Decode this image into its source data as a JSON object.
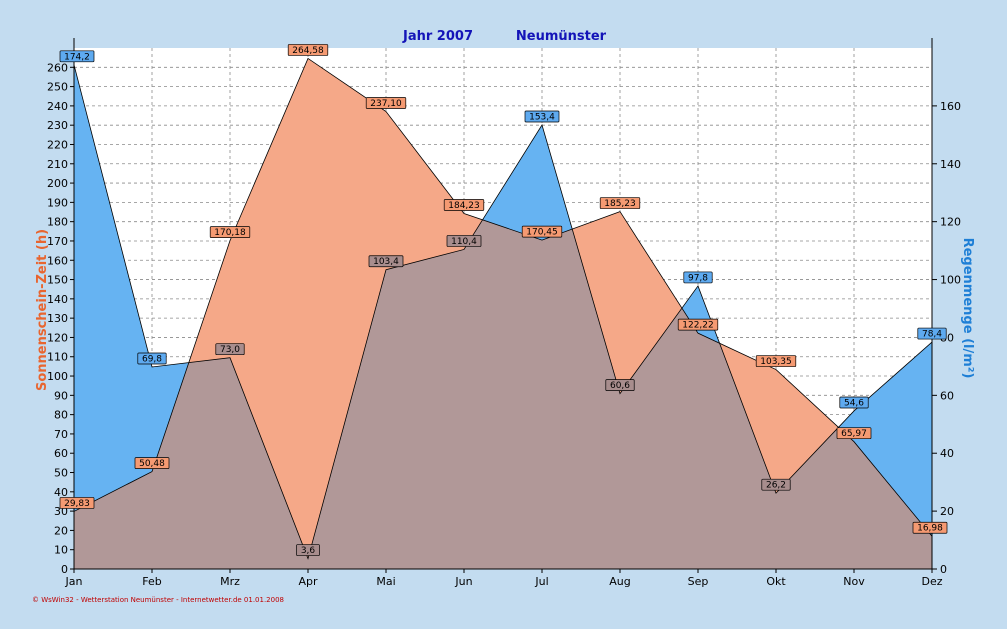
{
  "chart_data": {
    "type": "area",
    "title_year": "Jahr  2007",
    "title_station": "Neumünster",
    "categories": [
      "Jan",
      "Feb",
      "Mrz",
      "Apr",
      "Mai",
      "Jun",
      "Jul",
      "Aug",
      "Sep",
      "Okt",
      "Nov",
      "Dez"
    ],
    "ylabel_left": "Sonnenschein-Zeit  (h)",
    "ylabel_right": "Regenmenge  (l/m²)",
    "ylim_left": [
      0,
      270
    ],
    "yticks_left": [
      0,
      10,
      20,
      30,
      40,
      50,
      60,
      70,
      80,
      90,
      100,
      110,
      120,
      130,
      140,
      150,
      160,
      170,
      180,
      190,
      200,
      210,
      220,
      230,
      240,
      250,
      260
    ],
    "ylim_right": [
      0,
      180
    ],
    "yticks_right": [
      0,
      20,
      40,
      60,
      80,
      100,
      120,
      140,
      160
    ],
    "series": [
      {
        "name": "Regenmenge",
        "axis": "right",
        "values": [
          174.2,
          69.8,
          73.0,
          3.6,
          103.4,
          110.4,
          153.4,
          60.6,
          97.8,
          26.2,
          54.6,
          78.4
        ],
        "labels": [
          "174,2",
          "69,8",
          "73,0",
          "3,6",
          "103,4",
          "110,4",
          "153,4",
          "60,6",
          "97,8",
          "26,2",
          "54,6",
          "78,4"
        ]
      },
      {
        "name": "Sonnenschein-Zeit",
        "axis": "left",
        "values": [
          29.83,
          50.48,
          170.18,
          264.58,
          237.1,
          184.23,
          170.45,
          185.23,
          122.22,
          103.35,
          65.97,
          16.98
        ],
        "labels": [
          "29,83",
          "50,48",
          "170,18",
          "264,58",
          "237,10",
          "184,23",
          "170,45",
          "185,23",
          "122,22",
          "103,35",
          "65,97",
          "16,98"
        ]
      }
    ],
    "colors": {
      "rain": "#66b3f2",
      "sun": "#f5a888",
      "overlap": "#b19898",
      "title": "#1414b8",
      "sun_axis": "#e8652f",
      "rain_axis": "#1e7fd6",
      "footer": "#c00000"
    },
    "grid": true
  },
  "footer_text": "© WsWin32 - Wetterstation Neumünster - Internetwetter.de  01.01.2008"
}
